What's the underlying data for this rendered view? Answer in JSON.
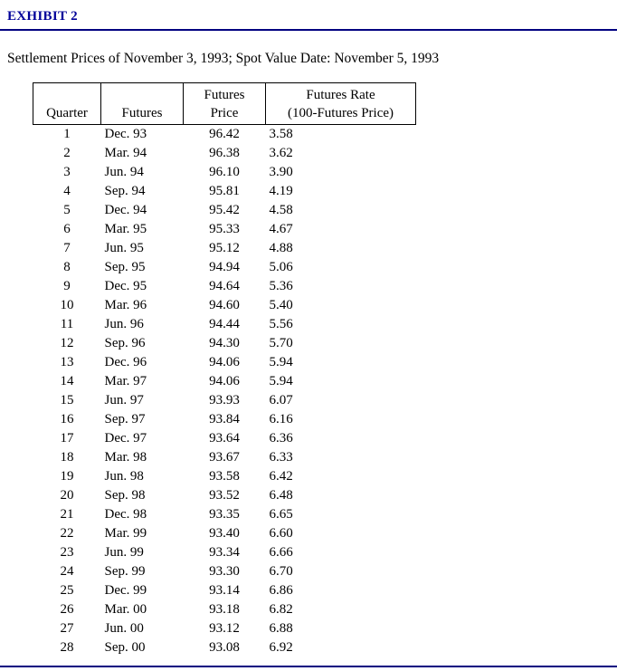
{
  "exhibit": {
    "title": "EXHIBIT 2",
    "subtitle": "Settlement Prices of November 3, 1993; Spot Value Date: November 5, 1993"
  },
  "table": {
    "headers": [
      {
        "lines": [
          "Quarter"
        ]
      },
      {
        "lines": [
          "Futures"
        ]
      },
      {
        "lines": [
          "Futures",
          "Price"
        ]
      },
      {
        "lines": [
          "Futures Rate",
          "(100-Futures Price)"
        ]
      }
    ],
    "rows": [
      {
        "quarter": "1",
        "futures": "Dec. 93",
        "price": "96.42",
        "rate": "3.58"
      },
      {
        "quarter": "2",
        "futures": "Mar. 94",
        "price": "96.38",
        "rate": "3.62"
      },
      {
        "quarter": "3",
        "futures": "Jun. 94",
        "price": "96.10",
        "rate": "3.90"
      },
      {
        "quarter": "4",
        "futures": "Sep. 94",
        "price": "95.81",
        "rate": "4.19"
      },
      {
        "quarter": "5",
        "futures": "Dec. 94",
        "price": "95.42",
        "rate": "4.58"
      },
      {
        "quarter": "6",
        "futures": "Mar. 95",
        "price": "95.33",
        "rate": "4.67"
      },
      {
        "quarter": "7",
        "futures": "Jun. 95",
        "price": "95.12",
        "rate": "4.88"
      },
      {
        "quarter": "8",
        "futures": "Sep. 95",
        "price": "94.94",
        "rate": "5.06"
      },
      {
        "quarter": "9",
        "futures": "Dec. 95",
        "price": "94.64",
        "rate": "5.36"
      },
      {
        "quarter": "10",
        "futures": "Mar. 96",
        "price": "94.60",
        "rate": "5.40"
      },
      {
        "quarter": "11",
        "futures": "Jun. 96",
        "price": "94.44",
        "rate": "5.56"
      },
      {
        "quarter": "12",
        "futures": "Sep. 96",
        "price": "94.30",
        "rate": "5.70"
      },
      {
        "quarter": "13",
        "futures": "Dec. 96",
        "price": "94.06",
        "rate": "5.94"
      },
      {
        "quarter": "14",
        "futures": "Mar. 97",
        "price": "94.06",
        "rate": "5.94"
      },
      {
        "quarter": "15",
        "futures": "Jun. 97",
        "price": "93.93",
        "rate": "6.07"
      },
      {
        "quarter": "16",
        "futures": "Sep. 97",
        "price": "93.84",
        "rate": "6.16"
      },
      {
        "quarter": "17",
        "futures": "Dec. 97",
        "price": "93.64",
        "rate": "6.36"
      },
      {
        "quarter": "18",
        "futures": "Mar. 98",
        "price": "93.67",
        "rate": "6.33"
      },
      {
        "quarter": "19",
        "futures": "Jun. 98",
        "price": "93.58",
        "rate": "6.42"
      },
      {
        "quarter": "20",
        "futures": "Sep. 98",
        "price": "93.52",
        "rate": "6.48"
      },
      {
        "quarter": "21",
        "futures": "Dec. 98",
        "price": "93.35",
        "rate": "6.65"
      },
      {
        "quarter": "22",
        "futures": "Mar. 99",
        "price": "93.40",
        "rate": "6.60"
      },
      {
        "quarter": "23",
        "futures": "Jun. 99",
        "price": "93.34",
        "rate": "6.66"
      },
      {
        "quarter": "24",
        "futures": "Sep. 99",
        "price": "93.30",
        "rate": "6.70"
      },
      {
        "quarter": "25",
        "futures": "Dec. 99",
        "price": "93.14",
        "rate": "6.86"
      },
      {
        "quarter": "26",
        "futures": "Mar. 00",
        "price": "93.18",
        "rate": "6.82"
      },
      {
        "quarter": "27",
        "futures": "Jun. 00",
        "price": "93.12",
        "rate": "6.88"
      },
      {
        "quarter": "28",
        "futures": "Sep. 00",
        "price": "93.08",
        "rate": "6.92"
      }
    ]
  }
}
